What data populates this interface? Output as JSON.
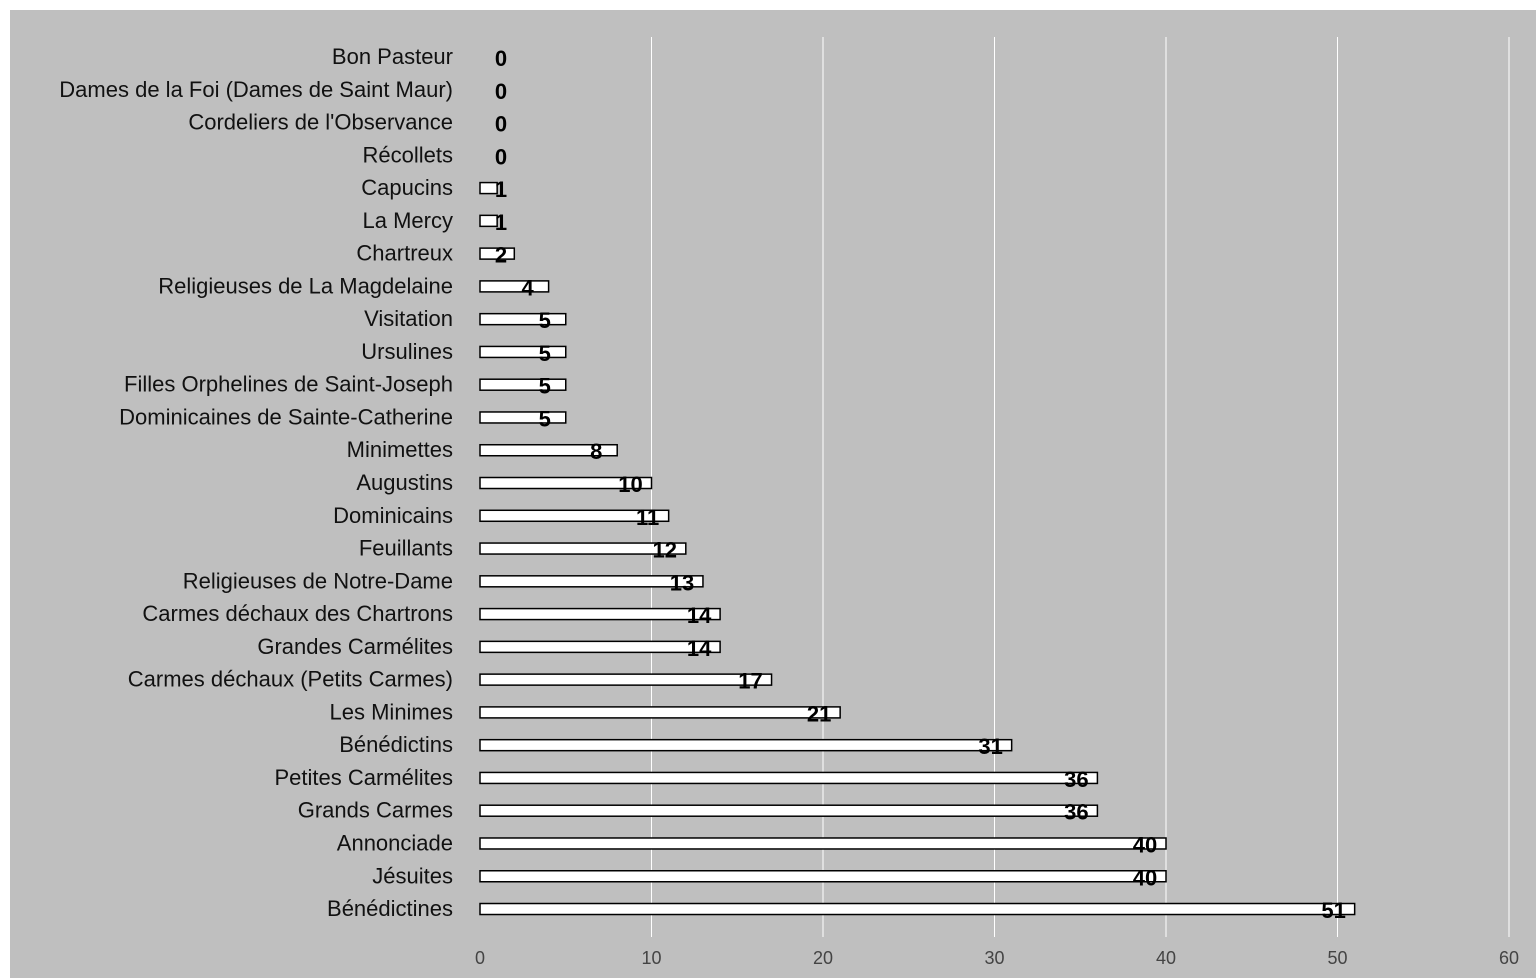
{
  "chart_data": {
    "type": "bar",
    "orientation": "horizontal",
    "title": "",
    "xlabel": "",
    "ylabel": "",
    "categories": [
      "Bon Pasteur",
      "Dames de la Foi (Dames de Saint Maur)",
      "Cordeliers de l'Observance",
      "Récollets",
      "Capucins",
      "La Mercy",
      "Chartreux",
      "Religieuses de La Magdelaine",
      "Visitation",
      "Ursulines",
      "Filles Orphelines de Saint-Joseph",
      "Dominicaines de Sainte-Catherine",
      "Minimettes",
      "Augustins",
      "Dominicains",
      "Feuillants",
      "Religieuses de Notre-Dame",
      "Carmes déchaux des Chartrons",
      "Grandes Carmélites",
      "Carmes déchaux (Petits Carmes)",
      "Les Minimes",
      "Bénédictins",
      "Petites Carmélites",
      "Grands Carmes",
      "Annonciade",
      "Jésuites",
      "Bénédictines"
    ],
    "values": [
      0,
      0,
      0,
      0,
      1,
      1,
      2,
      4,
      5,
      5,
      5,
      5,
      8,
      10,
      11,
      12,
      13,
      14,
      14,
      17,
      21,
      31,
      36,
      36,
      40,
      40,
      51
    ],
    "xlim": [
      0,
      60
    ],
    "xticks": [
      "0",
      "10",
      "20",
      "30",
      "40",
      "50",
      "60"
    ],
    "grid": "vertical",
    "legend": "none",
    "colors": {
      "background": "#bfbfbf",
      "bar_fill": "#ffffff",
      "bar_stroke": "#000000",
      "gridline": "#ffffff"
    }
  }
}
